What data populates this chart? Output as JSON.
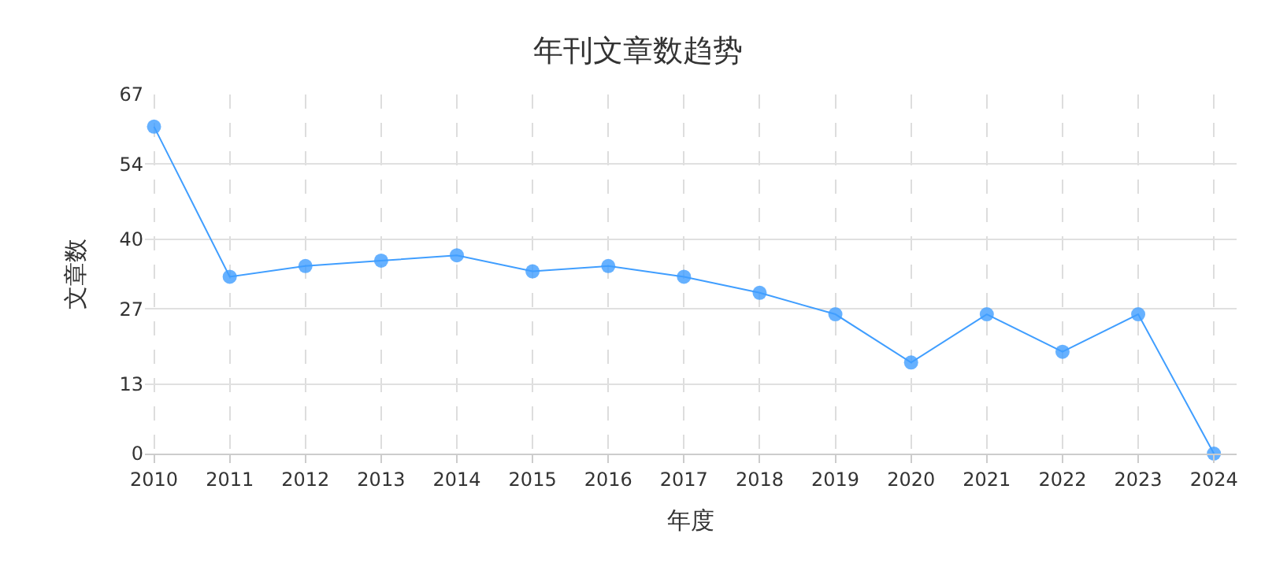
{
  "chart_data": {
    "type": "line",
    "title": "年刊文章数趋势",
    "xlabel": "年度",
    "ylabel": "文章数",
    "categories": [
      "2010",
      "2011",
      "2012",
      "2013",
      "2014",
      "2015",
      "2016",
      "2017",
      "2018",
      "2019",
      "2020",
      "2021",
      "2022",
      "2023",
      "2024"
    ],
    "series": [
      {
        "color": "#409eff",
        "values": [
          61,
          33,
          35,
          36,
          37,
          34,
          35,
          33,
          30,
          26,
          17,
          26,
          19,
          26,
          0
        ]
      }
    ],
    "ylim": [
      0,
      67
    ],
    "yticks": [
      0,
      13,
      27,
      40,
      54,
      67
    ],
    "grid": true,
    "marker": "circle",
    "line_style": "solid",
    "legend": false
  }
}
